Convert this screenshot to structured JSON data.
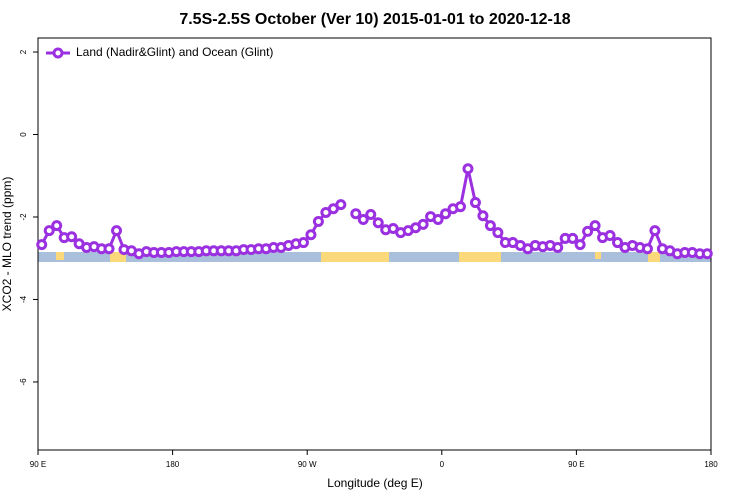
{
  "chart_data": {
    "type": "line",
    "title": "7.5S-2.5S October (Ver 10)   2015-01-01 to 2020-12-18",
    "xlabel": "Longitude (deg E)",
    "ylabel": "XCO2 - MLO trend (ppm)",
    "x": [
      92.5,
      97.5,
      102.5,
      107.5,
      112.5,
      117.5,
      122.5,
      127.5,
      132.5,
      137.5,
      142.5,
      147.5,
      152.5,
      157.5,
      162.5,
      167.5,
      172.5,
      177.5,
      182.5,
      187.5,
      192.5,
      197.5,
      202.5,
      207.5,
      212.5,
      217.5,
      222.5,
      227.5,
      232.5,
      237.5,
      242.5,
      247.5,
      252.5,
      257.5,
      262.5,
      267.5,
      272.5,
      277.5,
      282.5,
      287.5,
      292.5,
      297.5,
      302.5,
      307.5,
      312.5,
      317.5,
      322.5,
      327.5,
      332.5,
      337.5,
      342.5,
      347.5,
      352.5,
      357.5,
      362.5,
      367.5,
      372.5,
      377.5,
      382.5,
      387.5,
      392.5,
      397.5,
      402.5,
      407.5,
      412.5,
      417.5,
      422.5,
      427.5,
      432.5,
      437.5,
      442.5,
      447.5,
      452.5,
      457.5,
      462.5,
      467.5,
      472.5,
      477.5,
      482.5,
      487.5,
      492.5,
      497.5,
      502.5,
      507.5,
      512.5,
      517.5,
      522.5,
      527.5,
      532.5,
      537.5
    ],
    "series": [
      {
        "name": "Land (Nadir&Glint) and Ocean (Glint)",
        "color": "#9b30e0",
        "values": [
          -2.67,
          -2.33,
          -2.21,
          -2.5,
          -2.48,
          -2.65,
          -2.74,
          -2.72,
          -2.77,
          -2.77,
          -2.33,
          -2.79,
          -2.82,
          -2.89,
          -2.84,
          -2.86,
          -2.86,
          -2.86,
          -2.84,
          -2.84,
          -2.84,
          -2.84,
          -2.82,
          -2.82,
          -2.82,
          -2.82,
          -2.82,
          -2.79,
          -2.79,
          -2.77,
          -2.77,
          -2.74,
          -2.74,
          -2.69,
          -2.65,
          -2.62,
          -2.43,
          -2.11,
          -1.89,
          -1.8,
          -1.7,
          null,
          -1.92,
          -2.06,
          -1.94,
          -2.14,
          -2.31,
          -2.28,
          -2.38,
          -2.33,
          -2.26,
          -2.18,
          -1.99,
          -2.06,
          -1.92,
          -1.8,
          -1.75,
          -0.83,
          -1.65,
          -1.97,
          -2.21,
          -2.38,
          -2.62,
          -2.62,
          -2.69,
          -2.77,
          -2.69,
          -2.72,
          -2.69,
          -2.74,
          -2.52,
          -2.52,
          -2.67,
          -2.35,
          -2.21,
          -2.5,
          -2.45,
          -2.62,
          -2.74,
          -2.69,
          -2.74,
          -2.77,
          -2.33,
          -2.77,
          -2.82,
          -2.89,
          -2.86,
          -2.86,
          -2.89,
          -2.89
        ]
      }
    ],
    "xlim": [
      90,
      540
    ],
    "xticks": [
      {
        "value": 90,
        "label": "90 E"
      },
      180,
      {
        "value": 270,
        "label": "90 W"
      },
      {
        "value": 360,
        "label": "0"
      },
      {
        "value": 450,
        "label": "90 E"
      },
      {
        "value": 540,
        "label": "180"
      }
    ],
    "ylim": [
      -7.65,
      2.34
    ],
    "yticks": [
      2,
      0,
      -2,
      -4,
      -6
    ],
    "legend": "top-left"
  }
}
